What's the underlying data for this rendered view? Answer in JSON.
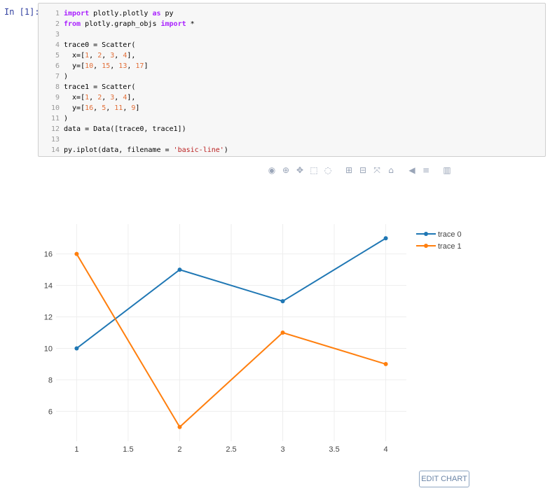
{
  "notebook": {
    "prompt": "In [1]:",
    "code_lines": [
      [
        {
          "t": "import",
          "c": "kw"
        },
        {
          "t": " plotly.plotly ",
          "c": "src"
        },
        {
          "t": "as",
          "c": "kw"
        },
        {
          "t": " py",
          "c": "src"
        }
      ],
      [
        {
          "t": "from",
          "c": "kw"
        },
        {
          "t": " plotly.graph_objs ",
          "c": "src"
        },
        {
          "t": "import",
          "c": "kw"
        },
        {
          "t": " *",
          "c": "src"
        }
      ],
      [],
      [
        {
          "t": "trace0 = Scatter(",
          "c": "src"
        }
      ],
      [
        {
          "t": "  x=[",
          "c": "src"
        },
        {
          "t": "1",
          "c": "num"
        },
        {
          "t": ", ",
          "c": "src"
        },
        {
          "t": "2",
          "c": "num"
        },
        {
          "t": ", ",
          "c": "src"
        },
        {
          "t": "3",
          "c": "num"
        },
        {
          "t": ", ",
          "c": "src"
        },
        {
          "t": "4",
          "c": "num"
        },
        {
          "t": "],",
          "c": "src"
        }
      ],
      [
        {
          "t": "  y=[",
          "c": "src"
        },
        {
          "t": "10",
          "c": "num"
        },
        {
          "t": ", ",
          "c": "src"
        },
        {
          "t": "15",
          "c": "num"
        },
        {
          "t": ", ",
          "c": "src"
        },
        {
          "t": "13",
          "c": "num"
        },
        {
          "t": ", ",
          "c": "src"
        },
        {
          "t": "17",
          "c": "num"
        },
        {
          "t": "]",
          "c": "src"
        }
      ],
      [
        {
          "t": ")",
          "c": "src"
        }
      ],
      [
        {
          "t": "trace1 = Scatter(",
          "c": "src"
        }
      ],
      [
        {
          "t": "  x=[",
          "c": "src"
        },
        {
          "t": "1",
          "c": "num"
        },
        {
          "t": ", ",
          "c": "src"
        },
        {
          "t": "2",
          "c": "num"
        },
        {
          "t": ", ",
          "c": "src"
        },
        {
          "t": "3",
          "c": "num"
        },
        {
          "t": ", ",
          "c": "src"
        },
        {
          "t": "4",
          "c": "num"
        },
        {
          "t": "],",
          "c": "src"
        }
      ],
      [
        {
          "t": "  y=[",
          "c": "src"
        },
        {
          "t": "16",
          "c": "num"
        },
        {
          "t": ", ",
          "c": "src"
        },
        {
          "t": "5",
          "c": "num"
        },
        {
          "t": ", ",
          "c": "src"
        },
        {
          "t": "11",
          "c": "num"
        },
        {
          "t": ", ",
          "c": "src"
        },
        {
          "t": "9",
          "c": "num"
        },
        {
          "t": "]",
          "c": "src"
        }
      ],
      [
        {
          "t": ")",
          "c": "src"
        }
      ],
      [
        {
          "t": "data = Data([trace0, trace1])",
          "c": "src"
        }
      ],
      [],
      [
        {
          "t": "py.iplot(data, filename = ",
          "c": "src"
        },
        {
          "t": "'basic-line'",
          "c": "str"
        },
        {
          "t": ")",
          "c": "src"
        }
      ]
    ]
  },
  "toolbar": {
    "icons": [
      "camera-icon",
      "zoom-icon",
      "pan-icon",
      "box-select-icon",
      "lasso-icon",
      "zoom-in-icon",
      "zoom-out-icon",
      "autoscale-icon",
      "reset-axes-icon",
      "hover-closest-icon",
      "hover-compare-icon",
      "plotly-logo-icon"
    ],
    "glyphs": [
      "◉",
      "⊕",
      "✥",
      "⬚",
      "◌",
      "⊞",
      "⊟",
      "⤧",
      "⌂",
      "◀",
      "≡",
      "▥"
    ]
  },
  "edit_chart_label": "EDIT CHART",
  "chart_data": {
    "type": "line",
    "x": [
      1,
      2,
      3,
      4
    ],
    "series": [
      {
        "name": "trace 0",
        "values": [
          10,
          15,
          13,
          17
        ],
        "color": "#1f77b4"
      },
      {
        "name": "trace 1",
        "values": [
          16,
          5,
          11,
          9
        ],
        "color": "#ff7f0e"
      }
    ],
    "xticks": [
      1,
      1.5,
      2,
      2.5,
      3,
      3.5,
      4
    ],
    "xtick_labels": [
      "1",
      "1.5",
      "2",
      "2.5",
      "3",
      "3.5",
      "4"
    ],
    "yticks": [
      6,
      8,
      10,
      12,
      14,
      16
    ],
    "xlim": [
      0.8,
      4.2
    ],
    "ylim": [
      4.1,
      17.9
    ],
    "grid": true,
    "legend": "top-right"
  }
}
